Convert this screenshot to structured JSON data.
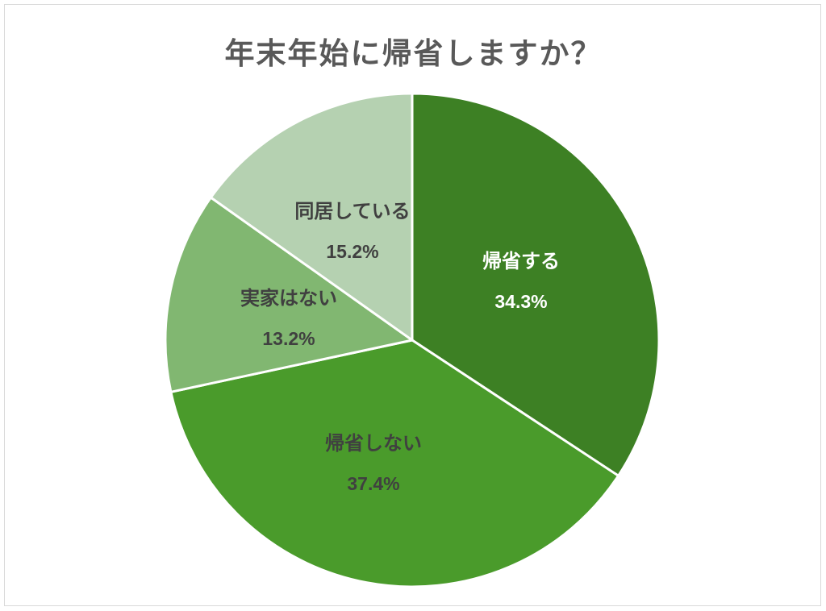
{
  "chart_data": {
    "type": "pie",
    "title": "年末年始に帰省しますか？",
    "slices": [
      {
        "label": "帰省する",
        "value": 34.3,
        "value_label": "34.3%",
        "color": "#3d8024",
        "text_color": "#ffffff"
      },
      {
        "label": "帰省しない",
        "value": 37.4,
        "value_label": "37.4%",
        "color": "#4a9b2b",
        "text_color": "#404040"
      },
      {
        "label": "実家はない",
        "value": 13.2,
        "value_label": "13.2%",
        "color": "#81b771",
        "text_color": "#404040"
      },
      {
        "label": "同居している",
        "value": 15.2,
        "value_label": "15.2%",
        "color": "#b5d1b1",
        "text_color": "#404040"
      }
    ],
    "start": "12 o'clock",
    "direction": "clockwise",
    "legend": "none"
  }
}
